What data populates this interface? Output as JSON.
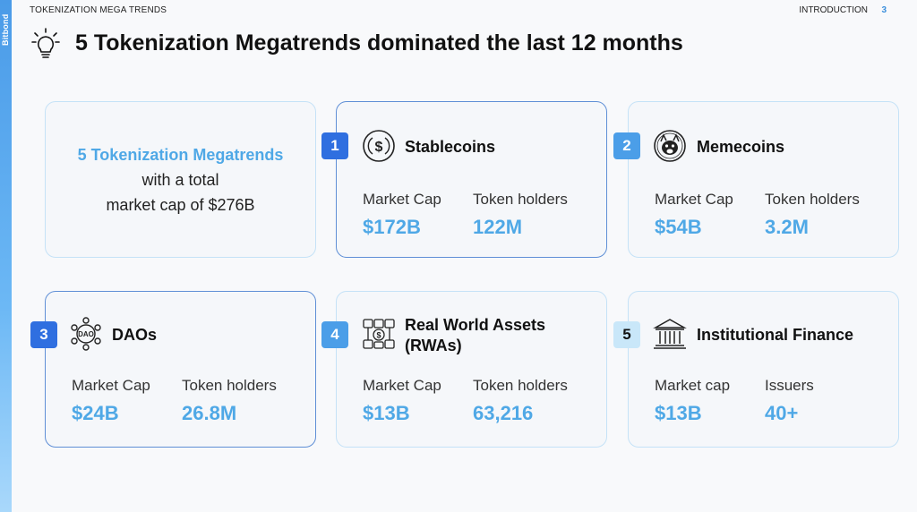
{
  "header": {
    "brand": "Bitbond",
    "section": "TOKENIZATION MEGA TRENDS",
    "chapter": "INTRODUCTION",
    "page": "3",
    "title": "5 Tokenization Megatrends dominated the last 12 months"
  },
  "summary": {
    "highlight": "5 Tokenization Megatrends",
    "line2": "with a total",
    "line3": "market cap of $276B"
  },
  "trends": [
    {
      "num": "1",
      "name": "Stablecoins",
      "icon": "dollar-coin-icon",
      "label1": "Market Cap",
      "value1": "$172B",
      "label2": "Token holders",
      "value2": "122M"
    },
    {
      "num": "2",
      "name": "Memecoins",
      "icon": "shiba-dog-icon",
      "label1": "Market Cap",
      "value1": "$54B",
      "label2": "Token holders",
      "value2": "3.2M"
    },
    {
      "num": "3",
      "name": "DAOs",
      "icon": "dao-network-icon",
      "label1": "Market Cap",
      "value1": "$24B",
      "label2": "Token holders",
      "value2": "26.8M"
    },
    {
      "num": "4",
      "name_line1": "Real World Assets",
      "name_line2": "(RWAs)",
      "icon": "real-world-assets-icon",
      "label1": "Market Cap",
      "value1": "$13B",
      "label2": "Token holders",
      "value2": "63,216"
    },
    {
      "num": "5",
      "name": "Institutional Finance",
      "icon": "bank-building-icon",
      "label1": "Market cap",
      "value1": "$13B",
      "label2": "Issuers",
      "value2": "40+"
    }
  ],
  "colors": {
    "accent": "#4fa8e6",
    "badge_dark": "#2f6fe0",
    "badge_mid": "#4b9ee8",
    "badge_light": "#c9e7f9"
  }
}
